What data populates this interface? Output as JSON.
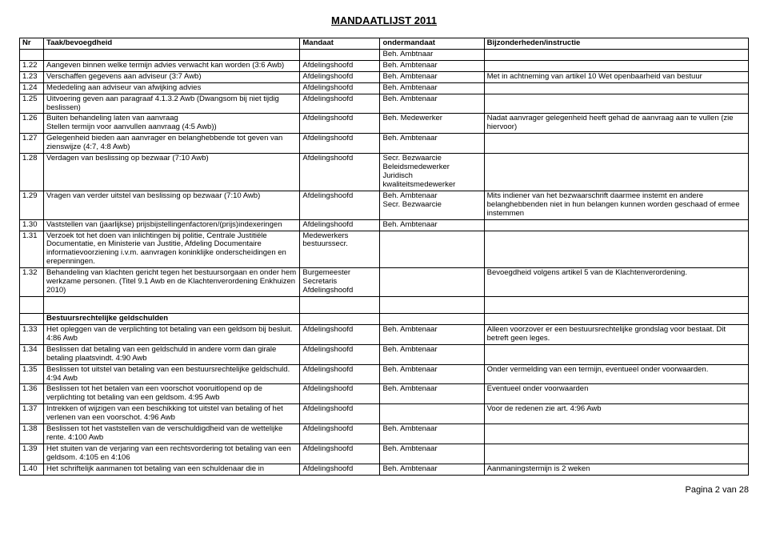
{
  "page_title": "MANDAATLIJST 2011",
  "footer": "Pagina 2 van 28",
  "header": {
    "nr": "Nr",
    "taak": "Taak/bevoegdheid",
    "mandaat": "Mandaat",
    "onder": "ondermandaat",
    "bij": "Bijzonderheden/instructie"
  },
  "pre_row": {
    "onder": "Beh. Ambtnaar"
  },
  "rows1": [
    {
      "nr": "1.22",
      "taak": "Aangeven binnen welke termijn advies verwacht kan worden (3:6 Awb)",
      "mandaat": "Afdelingshoofd",
      "onder": "Beh. Ambtenaar",
      "bij": ""
    },
    {
      "nr": "1.23",
      "taak": "Verschaffen gegevens aan adviseur (3:7 Awb)",
      "mandaat": "Afdelingshoofd",
      "onder": "Beh. Ambtenaar",
      "bij": "Met in achtneming van artikel 10 Wet openbaarheid van bestuur"
    },
    {
      "nr": "1.24",
      "taak": "Mededeling aan adviseur van afwijking advies",
      "mandaat": "Afdelingshoofd",
      "onder": "Beh. Ambtenaar",
      "bij": ""
    },
    {
      "nr": "1.25",
      "taak": "Uitvoering geven aan paragraaf 4.1.3.2 Awb (Dwangsom bij niet tijdig beslissen)",
      "mandaat": "Afdelingshoofd",
      "onder": "Beh. Ambtenaar",
      "bij": ""
    },
    {
      "nr": "1.26",
      "taak": "Buiten behandeling laten van aanvraag\nStellen termijn voor aanvullen aanvraag (4:5 Awb))",
      "mandaat": "Afdelingshoofd",
      "onder": "Beh. Medewerker",
      "bij": "Nadat aanvrager gelegenheid heeft gehad de aanvraag aan te vullen (zie hiervoor)"
    },
    {
      "nr": "1.27",
      "taak": "Gelegenheid bieden aan aanvrager en belanghebbende tot geven van zienswijze (4:7, 4:8 Awb)",
      "mandaat": "Afdelingshoofd",
      "onder": "Beh. Ambtenaar",
      "bij": ""
    },
    {
      "nr": "1.28",
      "taak": "Verdagen van beslissing op bezwaar (7:10 Awb)",
      "mandaat": "Afdelingshoofd",
      "onder": "Secr. Bezwaarcie\nBeleidsmedewerker Juridisch kwaliteitsmedewerker",
      "bij": ""
    },
    {
      "nr": "1.29",
      "taak": "Vragen van verder uitstel van beslissing op bezwaar (7:10 Awb)",
      "mandaat": "Afdelingshoofd",
      "onder": "Beh. Ambtenaar\nSecr. Bezwaarcie",
      "bij": "Mits indiener van het bezwaarschrift daarmee instemt en andere belanghebbenden niet in hun belangen kunnen worden geschaad of ermee instemmen"
    },
    {
      "nr": "1.30",
      "taak": "Vaststellen van (jaarlijkse) prijsbijstellingenfactoren/(prijs)indexeringen",
      "mandaat": "Afdelingshoofd",
      "onder": "Beh. Ambtenaar",
      "bij": ""
    },
    {
      "nr": "1.31",
      "taak": "Verzoek tot het doen van inlichtingen bij politie, Centrale Justitiële Documentatie, en Ministerie van Justitie, Afdeling Documentaire informatievoorziening i.v.m. aanvragen koninklijke onderscheidingen en erepenningen.",
      "mandaat": "Medewerkers bestuurssecr.",
      "onder": "",
      "bij": ""
    },
    {
      "nr": "1.32",
      "taak": "Behandeling van klachten gericht tegen het bestuursorgaan en onder hem werkzame personen. (Titel 9.1 Awb en de Klachtenverordening Enkhuizen 2010)",
      "mandaat": "Burgemeester\nSecretaris\nAfdelingshoofd",
      "onder": "",
      "bij": "Bevoegdheid volgens artikel 5 van de Klachtenverordening."
    }
  ],
  "section": "Bestuursrechtelijke geldschulden",
  "rows2": [
    {
      "nr": "1.33",
      "taak": "Het opleggen van de verplichting tot betaling van een geldsom bij besluit. 4:86 Awb",
      "mandaat": "Afdelingshoofd",
      "onder": "Beh. Ambtenaar",
      "bij": "Alleen voorzover er een bestuursrechtelijke grondslag voor bestaat. Dit betreft geen leges."
    },
    {
      "nr": "1.34",
      "taak": "Beslissen dat betaling van een geldschuld in andere vorm dan girale betaling plaatsvindt. 4:90 Awb",
      "mandaat": "Afdelingshoofd",
      "onder": "Beh. Ambtenaar",
      "bij": ""
    },
    {
      "nr": "1.35",
      "taak": "Beslissen tot uitstel van betaling van een bestuursrechtelijke geldschuld. 4:94 Awb",
      "mandaat": "Afdelingshoofd",
      "onder": "Beh. Ambtenaar",
      "bij": "Onder vermelding van een termijn, eventueel onder voorwaarden."
    },
    {
      "nr": "1.36",
      "taak": "Beslissen tot het betalen van een voorschot vooruitlopend op de verplichting tot betaling van een geldsom. 4:95 Awb",
      "mandaat": "Afdelingshoofd",
      "onder": "Beh. Ambtenaar",
      "bij": "Eventueel onder voorwaarden"
    },
    {
      "nr": "1.37",
      "taak": "Intrekken of wijzigen van een beschikking tot uitstel van betaling of het verlenen van een voorschot. 4:96 Awb",
      "mandaat": "Afdelingshoofd",
      "onder": "",
      "bij": "Voor de redenen zie art. 4:96 Awb"
    },
    {
      "nr": "1.38",
      "taak": "Beslissen tot het vaststellen van de verschuldigdheid van de wettelijke rente. 4:100 Awb",
      "mandaat": "Afdelingshoofd",
      "onder": "Beh. Ambtenaar",
      "bij": ""
    },
    {
      "nr": "1.39",
      "taak": "Het stuiten van de verjaring van een rechtsvordering tot betaling van een geldsom. 4:105 en 4:106",
      "mandaat": "Afdelingshoofd",
      "onder": "Beh. Ambtenaar",
      "bij": ""
    },
    {
      "nr": "1.40",
      "taak": "Het schriftelijk aanmanen tot betaling van een schuldenaar die in",
      "mandaat": "Afdelingshoofd",
      "onder": "Beh. Ambtenaar",
      "bij": "Aanmaningstermijn is 2 weken"
    }
  ]
}
